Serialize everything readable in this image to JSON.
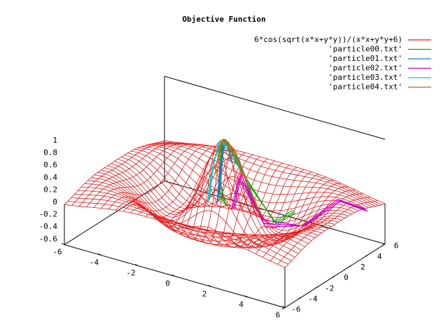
{
  "chart_data": {
    "type": "surface3d",
    "title": "Objective Function",
    "function_label": "6*cos(sqrt(x*x+y*y))/(x*x+y*y+6)",
    "x_range": [
      -6,
      6
    ],
    "y_range": [
      -6,
      6
    ],
    "z_range": [
      -0.7,
      1
    ],
    "x_ticks": [
      "-6",
      "-4",
      "-2",
      "0",
      "2",
      "4",
      "6"
    ],
    "y_ticks": [
      "-6",
      "-4",
      "-2",
      "0",
      "2",
      "4",
      "6"
    ],
    "z_ticks": [
      "1",
      "0.8",
      "0.6",
      "0.4",
      "0.2",
      "0",
      "-0.2",
      "-0.4",
      "-0.6"
    ],
    "legend_placement": "top-right",
    "series": [
      {
        "name": "6*cos(sqrt(x*x+y*y))/(x*x+y*y+6)",
        "color": "#e41a1c",
        "kind": "surface"
      },
      {
        "name": "'particle00.txt'",
        "color": "#00b000",
        "kind": "trajectory"
      },
      {
        "name": "'particle01.txt'",
        "color": "#1f77c4",
        "kind": "trajectory"
      },
      {
        "name": "'particle02.txt'",
        "color": "#cc00cc",
        "kind": "trajectory"
      },
      {
        "name": "'particle03.txt'",
        "color": "#00c8c8",
        "kind": "trajectory"
      },
      {
        "name": "'particle04.txt'",
        "color": "#cc6600",
        "kind": "trajectory"
      }
    ]
  }
}
